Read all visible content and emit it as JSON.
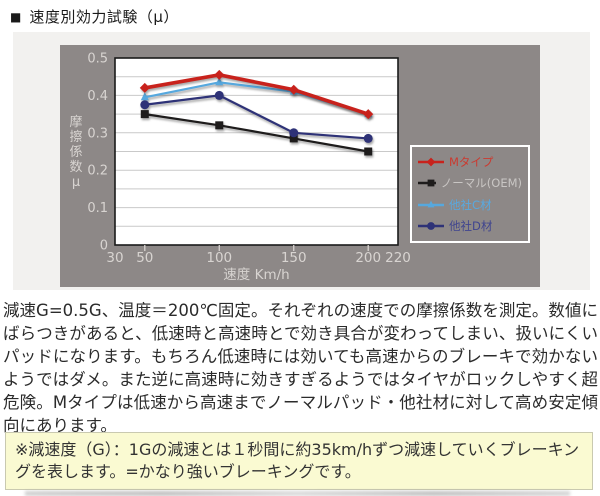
{
  "page": {
    "header": {
      "bullet": "■",
      "title": "速度別効力試験（μ）"
    },
    "description": "減速G=0.5G、温度＝200℃固定。それぞれの速度での摩擦係数を測定。数値にばらつきがあると、低速時と高速時とで効き具合が変わってしまい、扱いにくいパッドになります。もちろん低速時には効いても高速からのブレーキで効かないようではダメ。また逆に高速時に効きすぎるようではタイヤがロックしやすく超危険。Mタイプは低速から高速までノーマルパッド・他社材に対して高め安定傾向にあります。",
    "note": "※減速度（G）：1Gの減速とは１秒間に約35km/hずつ減速していくブレーキングを表します。=かなり強いブレーキングです。"
  },
  "colors": {
    "chart_bg": "#8d8887",
    "panel_bg": "#f2f1ef",
    "plot_bg": "#ffffff",
    "gridline": "#c9c9c9",
    "plot_border": "#1a1a1a",
    "axis_text": "#d8d4d1",
    "note_bg": "#fafad2",
    "note_border": "#c9c9b0",
    "legend_border": "#ffffff"
  },
  "chart_data": {
    "type": "line",
    "title": "速度別効力試験（μ）",
    "xlabel": "速度 Km/h",
    "ylabel": "摩擦係数μ",
    "x": [
      50,
      100,
      150,
      200
    ],
    "xlim": [
      30,
      220
    ],
    "ylim": [
      0,
      0.5
    ],
    "xticks": [
      30,
      50,
      100,
      150,
      200,
      220
    ],
    "yticks": [
      0,
      0.1,
      0.2,
      0.3,
      0.4,
      0.5
    ],
    "grid": {
      "horizontal_step": 0.05
    },
    "legend_position": "right-inside",
    "series": [
      {
        "name": "Mタイプ",
        "marker": "diamond",
        "color": "#c8221c",
        "legend_text_color": "#cb3a30",
        "values": [
          0.42,
          0.455,
          0.415,
          0.35
        ]
      },
      {
        "name": "ノーマル(OEM)",
        "marker": "square",
        "color": "#1e1c1c",
        "legend_text_color": "#c9c6c4",
        "values": [
          0.35,
          0.32,
          0.285,
          0.25
        ]
      },
      {
        "name": "他社C材",
        "marker": "triangle",
        "color": "#56a8de",
        "legend_text_color": "#58a9e0",
        "values": [
          0.395,
          0.435,
          0.41,
          0.35
        ]
      },
      {
        "name": "他社D材",
        "marker": "circle",
        "color": "#2e3277",
        "legend_text_color": "#40458f",
        "values": [
          0.375,
          0.4,
          0.3,
          0.285
        ]
      }
    ]
  }
}
